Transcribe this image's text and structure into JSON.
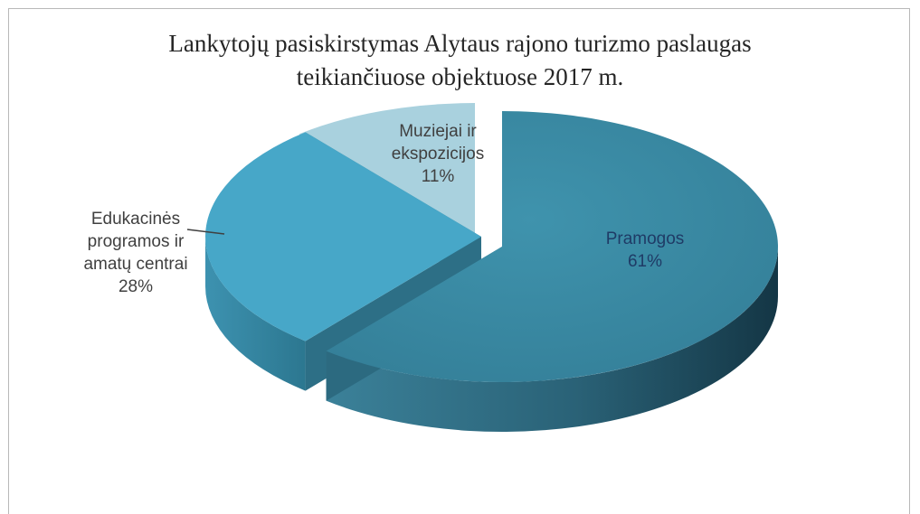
{
  "chart_data": {
    "type": "pie",
    "title_lines": [
      "Lankytojų pasiskirstymas Alytaus rajono turizmo paslaugas",
      "teikiančiuose objektuose 2017 m."
    ],
    "categories": [
      "Pramogos",
      "Edukacinės programos ir amatų centrai",
      "Muziejai ir ekspozicijos"
    ],
    "values": [
      61,
      28,
      11
    ],
    "value_labels": [
      "61%",
      "28%",
      "11%"
    ],
    "label_lines": [
      [
        "Pramogos",
        "61%"
      ],
      [
        "Edukacinės",
        "programos ir",
        "amatų centrai",
        "28%"
      ],
      [
        "Muziejai ir",
        "ekspozicijos",
        "11%"
      ]
    ],
    "colors": {
      "pramogos": "#3a8ca5",
      "edukacines": "#47a7c8",
      "muziejai": "#a9d1de",
      "label_dark": "#1f3b66",
      "label_light": "#404040"
    },
    "legend": "none",
    "style": "3d-exploded"
  }
}
